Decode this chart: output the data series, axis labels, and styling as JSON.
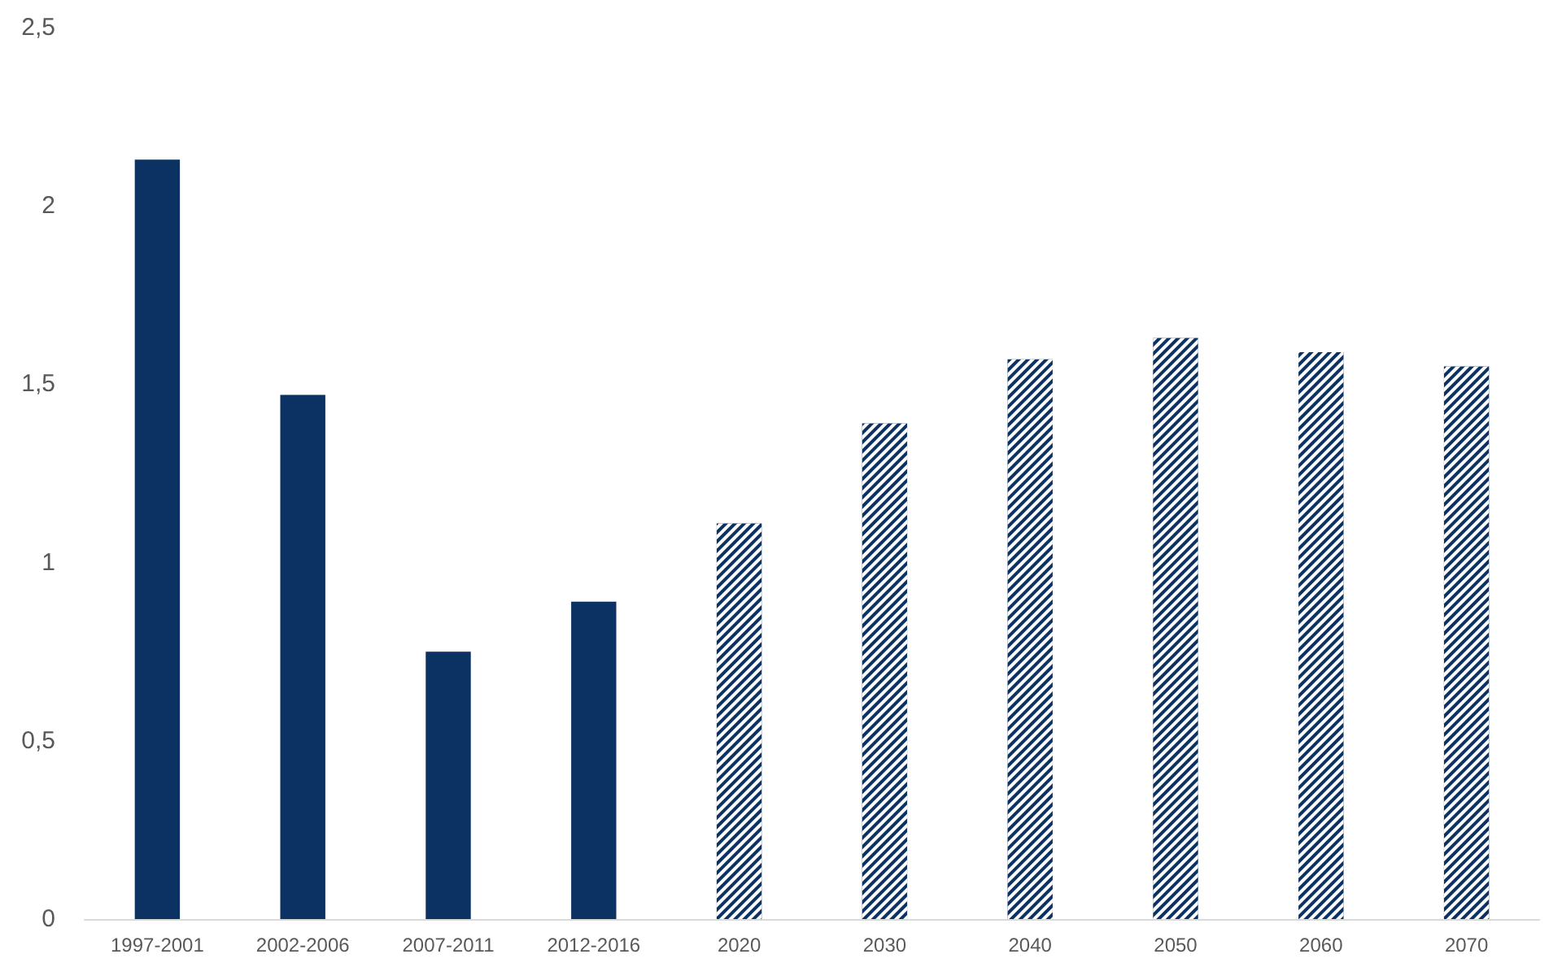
{
  "chart_data": {
    "type": "bar",
    "categories": [
      "1997-2001",
      "2002-2006",
      "2007-2011",
      "2012-2016",
      "2020",
      "2030",
      "2040",
      "2050",
      "2060",
      "2070"
    ],
    "series": [
      {
        "color": "#0b3263",
        "values": [
          2.13,
          1.47,
          0.75,
          0.89,
          null,
          null,
          null,
          null,
          null,
          null
        ]
      },
      {
        "color": "#0b3263",
        "values": [
          null,
          null,
          null,
          null,
          1.11,
          1.39,
          1.57,
          1.63,
          1.59,
          1.55
        ]
      }
    ],
    "ylim": [
      0,
      2.5
    ],
    "yticks": [
      0,
      {
        "value": 0.5,
        "label": "0,5"
      },
      1,
      {
        "value": 1.5,
        "label": "1,5"
      },
      2,
      {
        "value": 2.5,
        "label": "2,5"
      }
    ]
  }
}
